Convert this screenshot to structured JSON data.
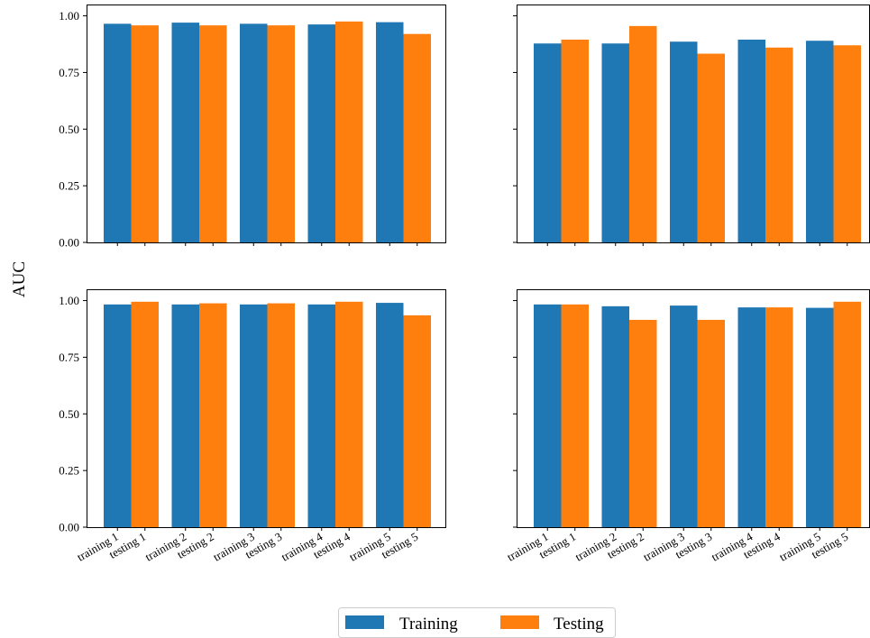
{
  "figure": {
    "ylabel": "AUC",
    "legend": {
      "placement": "bottom-center",
      "items": [
        {
          "label": "Training",
          "color": "#1f77b4"
        },
        {
          "label": "Testing",
          "color": "#ff7f0e"
        }
      ]
    }
  },
  "chart_data": [
    {
      "type": "bar",
      "categories": [
        [
          "training 1",
          "testing 1"
        ],
        [
          "training 2",
          "testing 2"
        ],
        [
          "training 3",
          "testing 3"
        ],
        [
          "training 4",
          "testing 4"
        ],
        [
          "training 5",
          "testing 5"
        ]
      ],
      "series": [
        {
          "name": "Training",
          "values": [
            0.965,
            0.97,
            0.965,
            0.962,
            0.972
          ]
        },
        {
          "name": "Testing",
          "values": [
            0.958,
            0.958,
            0.958,
            0.975,
            0.92
          ]
        }
      ],
      "ylim": [
        0,
        1.05
      ],
      "yticks": [
        "0.00",
        "0.25",
        "0.50",
        "0.75",
        "1.00"
      ],
      "show_yticklabels": true,
      "show_xticklabels": false
    },
    {
      "type": "bar",
      "categories": [
        [
          "training 1",
          "testing 1"
        ],
        [
          "training 2",
          "testing 2"
        ],
        [
          "training 3",
          "testing 3"
        ],
        [
          "training 4",
          "testing 4"
        ],
        [
          "training 5",
          "testing 5"
        ]
      ],
      "series": [
        {
          "name": "Training",
          "values": [
            0.878,
            0.878,
            0.886,
            0.895,
            0.89
          ]
        },
        {
          "name": "Testing",
          "values": [
            0.895,
            0.955,
            0.833,
            0.86,
            0.87
          ]
        }
      ],
      "ylim": [
        0,
        1.05
      ],
      "yticks": [
        "0.00",
        "0.25",
        "0.50",
        "0.75",
        "1.00"
      ],
      "show_yticklabels": false,
      "show_xticklabels": false
    },
    {
      "type": "bar",
      "categories": [
        [
          "training 1",
          "testing 1"
        ],
        [
          "training 2",
          "testing 2"
        ],
        [
          "training 3",
          "testing 3"
        ],
        [
          "training 4",
          "testing 4"
        ],
        [
          "training 5",
          "testing 5"
        ]
      ],
      "series": [
        {
          "name": "Training",
          "values": [
            0.983,
            0.983,
            0.983,
            0.983,
            0.99
          ]
        },
        {
          "name": "Testing",
          "values": [
            0.995,
            0.988,
            0.988,
            0.995,
            0.935
          ]
        }
      ],
      "ylim": [
        0,
        1.05
      ],
      "yticks": [
        "0.00",
        "0.25",
        "0.50",
        "0.75",
        "1.00"
      ],
      "show_yticklabels": true,
      "show_xticklabels": true
    },
    {
      "type": "bar",
      "categories": [
        [
          "training 1",
          "testing 1"
        ],
        [
          "training 2",
          "testing 2"
        ],
        [
          "training 3",
          "testing 3"
        ],
        [
          "training 4",
          "testing 4"
        ],
        [
          "training 5",
          "testing 5"
        ]
      ],
      "series": [
        {
          "name": "Training",
          "values": [
            0.983,
            0.975,
            0.978,
            0.97,
            0.968
          ]
        },
        {
          "name": "Testing",
          "values": [
            0.983,
            0.915,
            0.915,
            0.97,
            0.995
          ]
        }
      ],
      "ylim": [
        0,
        1.05
      ],
      "yticks": [
        "0.00",
        "0.25",
        "0.50",
        "0.75",
        "1.00"
      ],
      "show_yticklabels": false,
      "show_xticklabels": true
    }
  ]
}
